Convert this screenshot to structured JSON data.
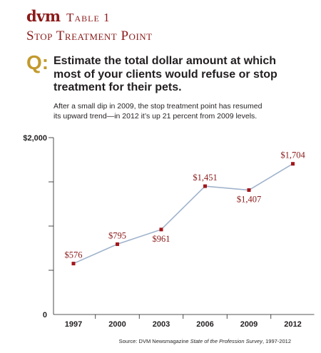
{
  "header": {
    "brand": "dvm",
    "table_label": "Table 1",
    "title": "Stop Treatment Point"
  },
  "question": {
    "label": "Q:",
    "text": "Estimate the total dollar amount at which most of your clients would refuse or stop treatment for their pets."
  },
  "subtitle": "After a small dip in 2009, the stop treatment point has resumed its upward trend—in 2012 it’s up 21 percent from 2009 levels.",
  "source": {
    "prefix": "Source: DVM Newsmagazine ",
    "title": "State of the Profession Survey",
    "suffix": ", 1997-2012"
  },
  "colors": {
    "accent": "#8b1a1a",
    "q_gold": "#c29a2e",
    "line": "#9fb3cc",
    "marker": "#a3161a",
    "axis": "#231f20"
  },
  "chart_data": {
    "type": "line",
    "categories": [
      "1997",
      "2000",
      "2003",
      "2006",
      "2009",
      "2012"
    ],
    "values": [
      576,
      795,
      961,
      1451,
      1407,
      1704
    ],
    "data_labels": [
      "$576",
      "$795",
      "$961",
      "$1,451",
      "$1,407",
      "$1,704"
    ],
    "ylim": [
      0,
      2000
    ],
    "y_tick_labels": [
      {
        "value": 2000,
        "label": "$2,000"
      },
      {
        "value": 1500,
        "label": ""
      },
      {
        "value": 1000,
        "label": ""
      },
      {
        "value": 500,
        "label": ""
      },
      {
        "value": 0,
        "label": "0"
      }
    ],
    "grid": false,
    "legend": "none"
  }
}
